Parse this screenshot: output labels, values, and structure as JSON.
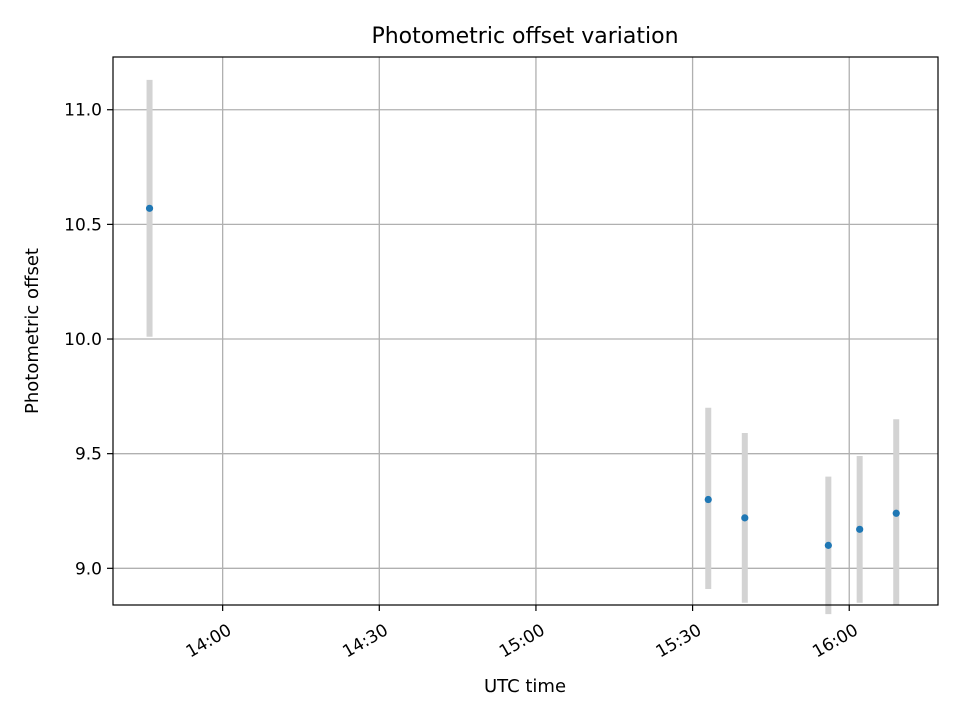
{
  "chart_data": {
    "type": "scatter",
    "title": "Photometric offset variation",
    "xlabel": "UTC time",
    "ylabel": "Photometric offset",
    "grid": true,
    "x_axis": {
      "type": "time",
      "range": [
        "13:39",
        "16:17"
      ],
      "ticks": [
        "14:00",
        "14:30",
        "15:00",
        "15:30",
        "16:00"
      ]
    },
    "y_axis": {
      "range": [
        8.84,
        11.23
      ],
      "ticks": [
        {
          "value": 9.0,
          "label": "9.0"
        },
        {
          "value": 9.5,
          "label": "9.5"
        },
        {
          "value": 10.0,
          "label": "10.0"
        },
        {
          "value": 10.5,
          "label": "10.5"
        },
        {
          "value": 11.0,
          "label": "11.0"
        }
      ]
    },
    "series": [
      {
        "x": [
          "13:46",
          "15:33",
          "15:40",
          "15:56",
          "16:02",
          "16:09"
        ],
        "y": [
          10.57,
          9.3,
          9.22,
          9.1,
          9.17,
          9.24
        ],
        "y_low": [
          10.01,
          8.91,
          8.85,
          8.8,
          8.85,
          8.84
        ],
        "y_high": [
          11.13,
          9.7,
          9.59,
          9.4,
          9.49,
          9.65
        ]
      }
    ],
    "colors": {
      "marker": "#1f77b4",
      "errorbar": "#d3d3d3",
      "grid": "#b0b0b0"
    }
  }
}
